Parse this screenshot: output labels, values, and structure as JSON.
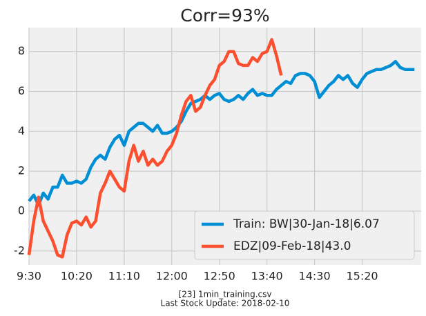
{
  "chart_data": {
    "type": "line",
    "title": "Corr=93%",
    "footer": [
      "[23] 1min_training.csv",
      "Last Stock Update: 2018-02-10"
    ],
    "x": [
      "9:30",
      "9:35",
      "9:40",
      "9:45",
      "9:50",
      "9:55",
      "10:00",
      "10:05",
      "10:10",
      "10:15",
      "10:20",
      "10:25",
      "10:30",
      "10:35",
      "10:40",
      "10:45",
      "10:50",
      "10:55",
      "11:00",
      "11:05",
      "11:10",
      "11:15",
      "11:20",
      "11:25",
      "11:30",
      "11:35",
      "11:40",
      "11:45",
      "11:50",
      "11:55",
      "12:00",
      "12:05",
      "12:10",
      "12:15",
      "12:20",
      "12:25",
      "12:30",
      "12:35",
      "12:40",
      "12:45",
      "12:50",
      "12:55",
      "13:00",
      "13:05",
      "13:10",
      "13:15",
      "13:20",
      "13:25",
      "13:30",
      "13:35",
      "13:40",
      "13:45",
      "13:50",
      "13:55",
      "14:00",
      "14:05",
      "14:10",
      "14:15",
      "14:20",
      "14:25",
      "14:30",
      "14:35",
      "14:40",
      "14:45",
      "14:50",
      "14:55",
      "15:00",
      "15:05",
      "15:10",
      "15:15",
      "15:20",
      "15:25",
      "15:30",
      "15:35",
      "15:40",
      "15:45",
      "15:50",
      "15:55",
      "16:00",
      "16:05",
      "16:10",
      "16:15"
    ],
    "series": [
      {
        "name": "Train: BW|30-Jan-18|6.07",
        "color": "#008fd5",
        "values": [
          0.5,
          0.8,
          0.3,
          0.9,
          0.6,
          1.2,
          1.2,
          1.8,
          1.4,
          1.4,
          1.5,
          1.4,
          1.6,
          2.2,
          2.6,
          2.8,
          2.6,
          3.2,
          3.6,
          3.8,
          3.3,
          4.0,
          4.2,
          4.4,
          4.4,
          4.2,
          4.0,
          4.3,
          3.9,
          3.9,
          4.0,
          4.2,
          4.5,
          5.0,
          5.4,
          5.5,
          5.6,
          5.8,
          5.6,
          5.8,
          5.9,
          5.6,
          5.5,
          5.6,
          5.8,
          5.6,
          5.9,
          6.1,
          5.8,
          5.9,
          5.8,
          5.8,
          6.1,
          6.3,
          6.5,
          6.4,
          6.8,
          6.9,
          6.9,
          6.8,
          6.5,
          5.7,
          6.0,
          6.3,
          6.5,
          6.8,
          6.6,
          6.8,
          6.4,
          6.2,
          6.6,
          6.9,
          7.0,
          7.1,
          7.1,
          7.2,
          7.3,
          7.5,
          7.2,
          7.1,
          7.1,
          7.1
        ]
      },
      {
        "name": "EDZ|09-Feb-18|43.0",
        "color": "#fc4f30",
        "values": [
          -2.2,
          -0.5,
          0.7,
          -0.5,
          -1.0,
          -1.5,
          -2.2,
          -2.3,
          -1.2,
          -0.6,
          -0.5,
          -0.7,
          -0.3,
          -0.8,
          -0.5,
          0.9,
          1.4,
          2.0,
          1.6,
          1.2,
          1.0,
          2.5,
          3.3,
          2.5,
          3.0,
          2.3,
          2.6,
          2.3,
          2.5,
          3.0,
          3.3,
          3.9,
          4.8,
          5.5,
          5.8,
          5.0,
          5.2,
          5.8,
          6.3,
          6.6,
          7.3,
          7.5,
          8.0,
          8.0,
          7.4,
          7.3,
          7.3,
          7.7,
          7.5,
          7.9,
          8.0,
          8.6,
          7.8,
          6.8,
          null,
          null,
          null,
          null,
          null,
          null,
          null,
          null,
          null,
          null,
          null,
          null,
          null,
          null,
          null,
          null,
          null,
          null,
          null,
          null,
          null,
          null,
          null,
          null,
          null,
          null,
          null,
          null
        ]
      }
    ],
    "xlim": [
      "9:30",
      "16:22"
    ],
    "xticks": [
      "9:30",
      "10:20",
      "11:10",
      "12:00",
      "12:50",
      "13:40",
      "14:30",
      "15:20"
    ],
    "ylim": [
      -2.7,
      9.2
    ],
    "yticks": [
      -2,
      0,
      2,
      4,
      6,
      8
    ],
    "grid": true,
    "legend": "lower right"
  }
}
